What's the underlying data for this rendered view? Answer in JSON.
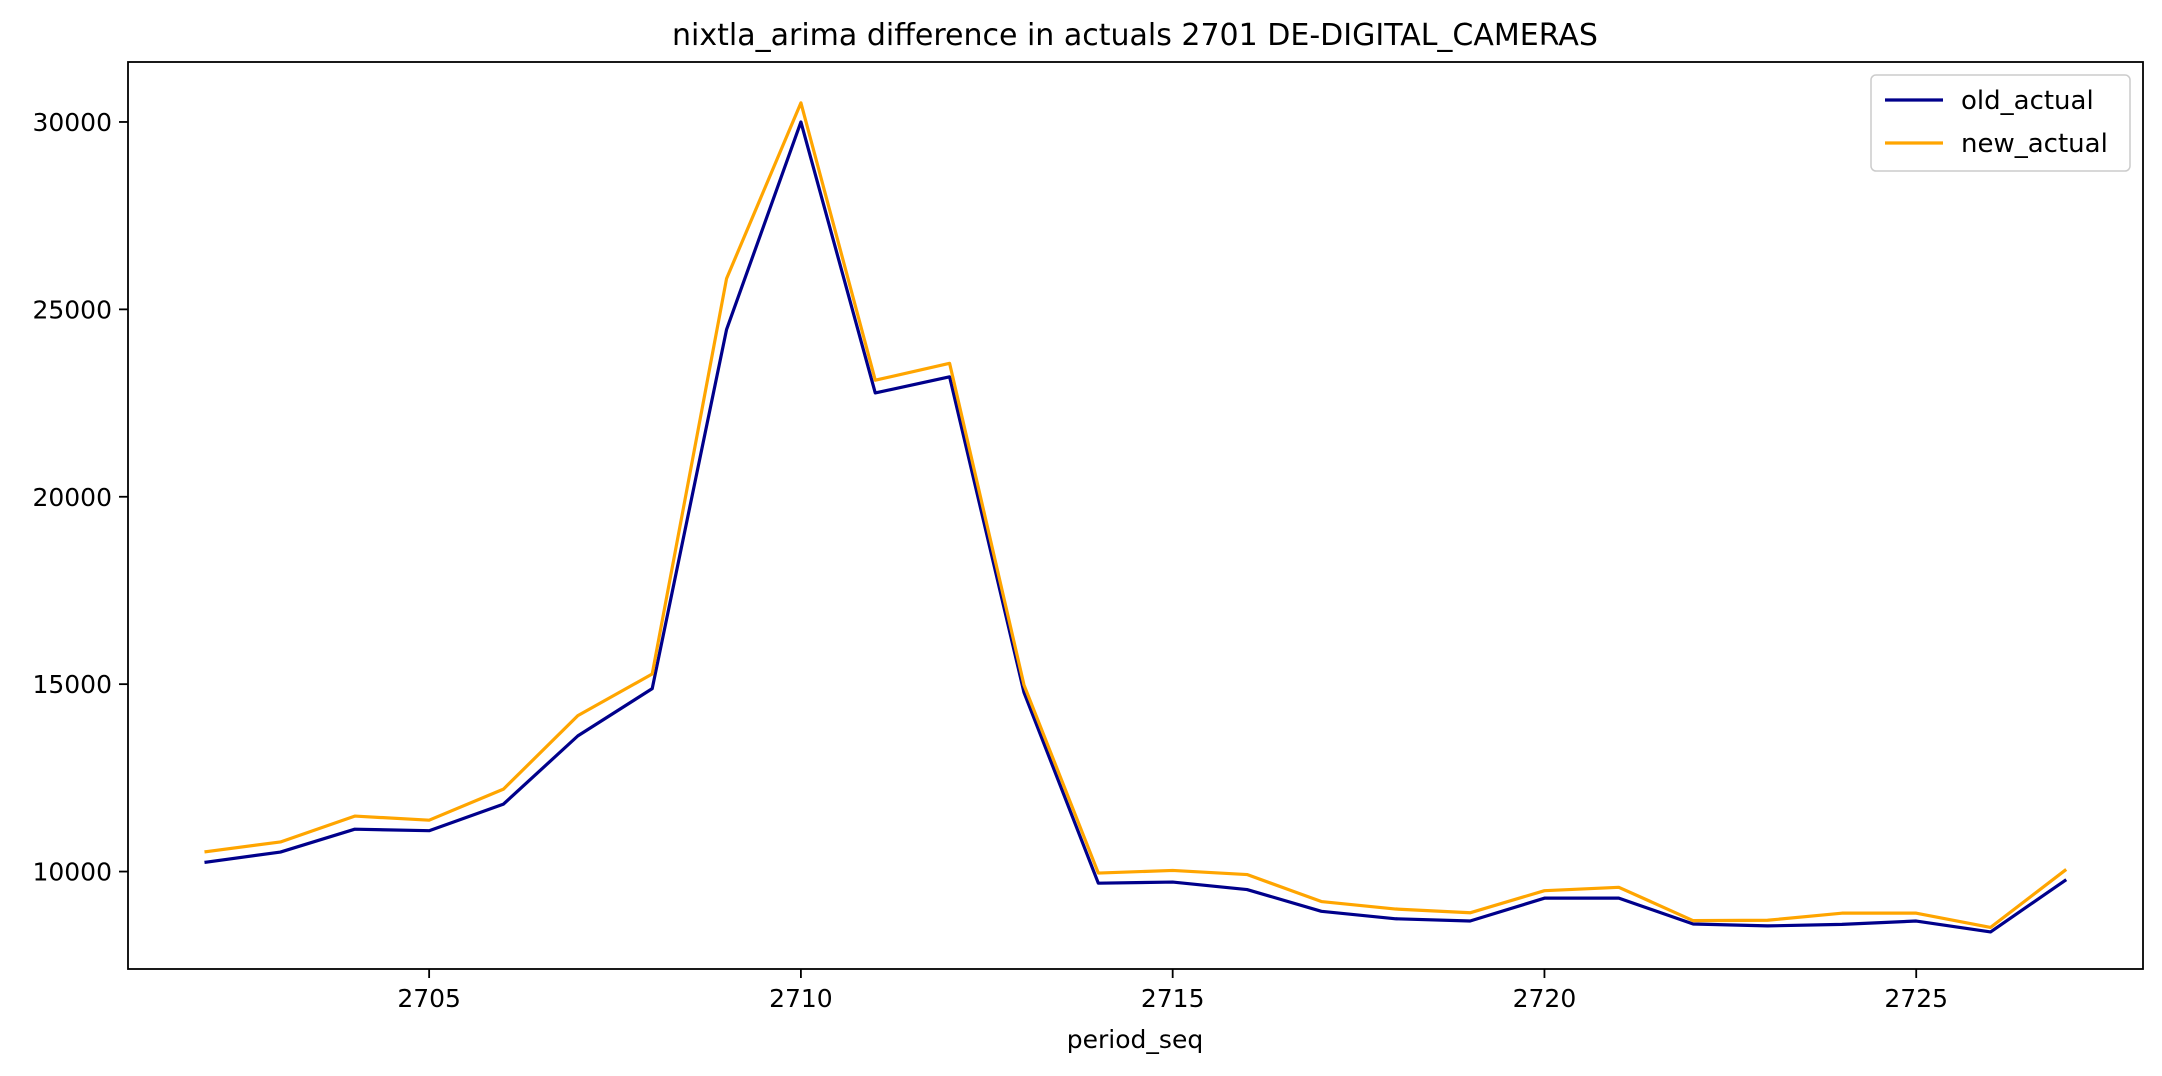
{
  "chart_data": {
    "type": "line",
    "title": "nixtla_arima difference in actuals 2701 DE-DIGITAL_CAMERAS",
    "xlabel": "period_seq",
    "ylabel": "",
    "x": [
      2702,
      2703,
      2704,
      2705,
      2706,
      2707,
      2708,
      2709,
      2710,
      2711,
      2712,
      2713,
      2714,
      2715,
      2716,
      2717,
      2718,
      2719,
      2720,
      2721,
      2722,
      2723,
      2724,
      2725,
      2726,
      2727
    ],
    "xlim": [
      2700.95,
      2728.05
    ],
    "ylim": [
      7400,
      31600
    ],
    "xticks": [
      2705,
      2710,
      2715,
      2720,
      2725
    ],
    "yticks": [
      10000,
      15000,
      20000,
      25000,
      30000
    ],
    "grid": false,
    "legend_position": "top-right",
    "series": [
      {
        "name": "old_actual",
        "color": "#00008b",
        "values": [
          10250,
          10520,
          11130,
          11090,
          11800,
          13620,
          14880,
          24460,
          30000,
          22770,
          23200,
          14780,
          9690,
          9720,
          9520,
          8940,
          8740,
          8680,
          9290,
          9290,
          8600,
          8550,
          8590,
          8680,
          8390,
          9760
        ]
      },
      {
        "name": "new_actual",
        "color": "#ffa500",
        "values": [
          10530,
          10790,
          11480,
          11370,
          12200,
          14160,
          15270,
          25820,
          30510,
          23110,
          23560,
          14980,
          9960,
          10030,
          9920,
          9200,
          9000,
          8900,
          9490,
          9580,
          8690,
          8700,
          8890,
          8890,
          8510,
          10030
        ]
      }
    ]
  }
}
